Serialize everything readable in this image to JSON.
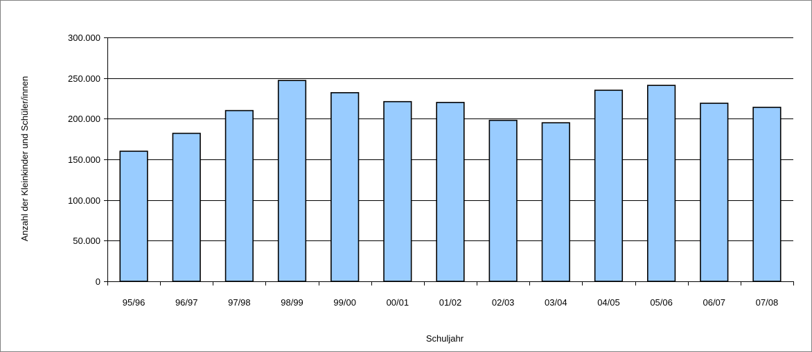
{
  "chart_data": {
    "type": "bar",
    "categories": [
      "95/96",
      "96/97",
      "97/98",
      "98/99",
      "99/00",
      "00/01",
      "01/02",
      "02/03",
      "03/04",
      "04/05",
      "05/06",
      "06/07",
      "07/08"
    ],
    "values": [
      160000,
      182000,
      210000,
      247000,
      232000,
      221000,
      220000,
      198000,
      195000,
      235000,
      241000,
      219000,
      214000
    ],
    "title": "",
    "xlabel": "Schuljahr",
    "ylabel": "Anzahl der Kleinkinder und Schüler/innen",
    "ylim": [
      0,
      300000
    ],
    "y_ticks": [
      0,
      50000,
      100000,
      150000,
      200000,
      250000,
      300000
    ],
    "y_tick_labels": [
      "0",
      "50.000",
      "100.000",
      "150.000",
      "200.000",
      "250.000",
      "300.000"
    ],
    "grid": true,
    "legend": "none",
    "colors": {
      "bar_fill": "#99ccff",
      "bar_stroke": "#000000",
      "gridline": "#000000"
    }
  }
}
